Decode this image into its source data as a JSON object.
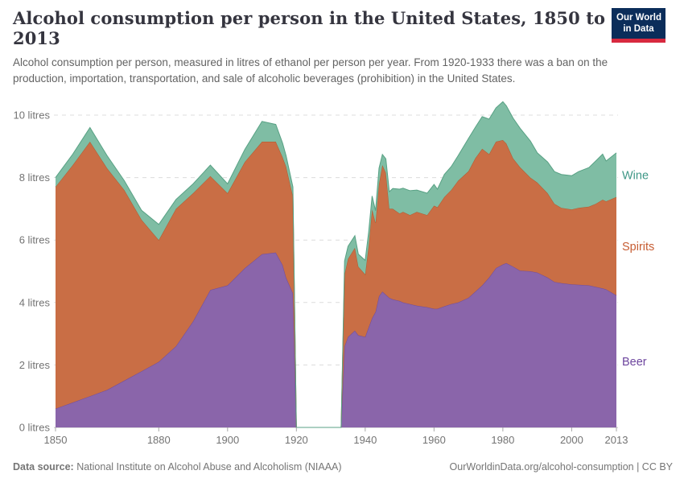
{
  "header": {
    "title": "Alcohol consumption per person in the United States, 1850 to 2013",
    "subtitle": "Alcohol consumption per person, measured in litres of ethanol per person per year. From 1920-1933 there was a ban on the production, importation, transportation, and sale of alcoholic beverages (prohibition) in the United States.",
    "logo": {
      "line1": "Our World",
      "line2": "in Data",
      "bg": "#0b2d5a",
      "stripe": "#d8293f"
    }
  },
  "footer": {
    "source_label": "Data source:",
    "source_text": " National Institute on Alcohol Abuse and Alcoholism (NIAAA)",
    "right_text": "OurWorldinData.org/alcohol-consumption | CC BY"
  },
  "chart_data": {
    "type": "area",
    "stacked": true,
    "title": "Alcohol consumption per person in the United States, 1850 to 2013",
    "xlabel": "",
    "ylabel": "litres of ethanol per person per year",
    "x_range": [
      1850,
      2013
    ],
    "y_range": [
      0,
      10.5
    ],
    "grid": "horizontal-dashed",
    "legend_position": "right",
    "gap_years": [
      1920,
      1933
    ],
    "x_ticks": [
      1850,
      1880,
      1900,
      1920,
      1940,
      1960,
      1980,
      2000,
      2013
    ],
    "y_ticks": [
      {
        "value": 0,
        "label": "0 litres"
      },
      {
        "value": 2,
        "label": "2 litres"
      },
      {
        "value": 4,
        "label": "4 litres"
      },
      {
        "value": 6,
        "label": "6 litres"
      },
      {
        "value": 8,
        "label": "8 litres"
      },
      {
        "value": 10,
        "label": "10 litres"
      }
    ],
    "x": [
      1850,
      1855,
      1860,
      1865,
      1870,
      1875,
      1880,
      1885,
      1890,
      1895,
      1900,
      1905,
      1910,
      1914,
      1916,
      1917,
      1919,
      1920,
      1933,
      1934,
      1935,
      1937,
      1938,
      1940,
      1941,
      1942,
      1943,
      1944,
      1945,
      1946,
      1947,
      1948,
      1950,
      1951,
      1953,
      1955,
      1958,
      1960,
      1961,
      1963,
      1965,
      1967,
      1970,
      1972,
      1974,
      1976,
      1978,
      1980,
      1981,
      1983,
      1985,
      1988,
      1990,
      1993,
      1995,
      1997,
      2000,
      2002,
      2005,
      2007,
      2009,
      2010,
      2013
    ],
    "series": [
      {
        "name": "Beer",
        "fill": "#8a65aa",
        "stroke": "#6f4c9c",
        "label_color": "#6d459e",
        "values": [
          0.6,
          0.8,
          1.0,
          1.2,
          1.5,
          1.8,
          2.1,
          2.6,
          3.4,
          4.4,
          4.55,
          5.1,
          5.55,
          5.6,
          5.2,
          4.8,
          4.3,
          0,
          0,
          2.6,
          2.9,
          3.1,
          2.95,
          2.9,
          3.2,
          3.5,
          3.7,
          4.2,
          4.35,
          4.25,
          4.15,
          4.1,
          4.05,
          4.0,
          3.95,
          3.9,
          3.85,
          3.8,
          3.8,
          3.88,
          3.95,
          4.0,
          4.15,
          4.35,
          4.55,
          4.8,
          5.1,
          5.22,
          5.26,
          5.15,
          5.02,
          5.0,
          4.96,
          4.8,
          4.66,
          4.62,
          4.58,
          4.57,
          4.55,
          4.5,
          4.45,
          4.42,
          4.23
        ]
      },
      {
        "name": "Spirits",
        "fill": "#c96e45",
        "stroke": "#b05a30",
        "label_color": "#c75d33",
        "values": [
          7.1,
          7.6,
          8.15,
          7.1,
          6.1,
          4.85,
          3.9,
          4.4,
          4.1,
          3.65,
          2.95,
          3.4,
          3.6,
          3.55,
          3.45,
          3.55,
          3.1,
          0,
          0,
          2.3,
          2.5,
          2.65,
          2.2,
          2.0,
          2.6,
          3.48,
          2.85,
          3.6,
          4.05,
          3.9,
          2.85,
          2.9,
          2.8,
          2.9,
          2.85,
          3.0,
          2.95,
          3.3,
          3.25,
          3.5,
          3.65,
          3.9,
          4.05,
          4.27,
          4.37,
          3.95,
          4.05,
          3.98,
          3.83,
          3.46,
          3.31,
          3.0,
          2.88,
          2.7,
          2.5,
          2.41,
          2.4,
          2.46,
          2.52,
          2.66,
          2.84,
          2.82,
          3.15
        ]
      },
      {
        "name": "Wine",
        "fill": "#7fbda4",
        "stroke": "#58a184",
        "label_color": "#3e9786",
        "values": [
          0.3,
          0.35,
          0.45,
          0.4,
          0.3,
          0.3,
          0.5,
          0.3,
          0.3,
          0.35,
          0.3,
          0.4,
          0.65,
          0.55,
          0.45,
          0.35,
          0.3,
          0,
          0,
          0.43,
          0.4,
          0.39,
          0.4,
          0.45,
          0.45,
          0.43,
          0.39,
          0.5,
          0.34,
          0.45,
          0.55,
          0.65,
          0.78,
          0.76,
          0.78,
          0.7,
          0.7,
          0.68,
          0.58,
          0.72,
          0.75,
          0.8,
          1.05,
          0.99,
          1.03,
          1.12,
          1.08,
          1.23,
          1.21,
          1.29,
          1.25,
          1.17,
          0.95,
          1.0,
          1.03,
          1.07,
          1.08,
          1.16,
          1.25,
          1.37,
          1.46,
          1.29,
          1.41
        ]
      }
    ]
  }
}
